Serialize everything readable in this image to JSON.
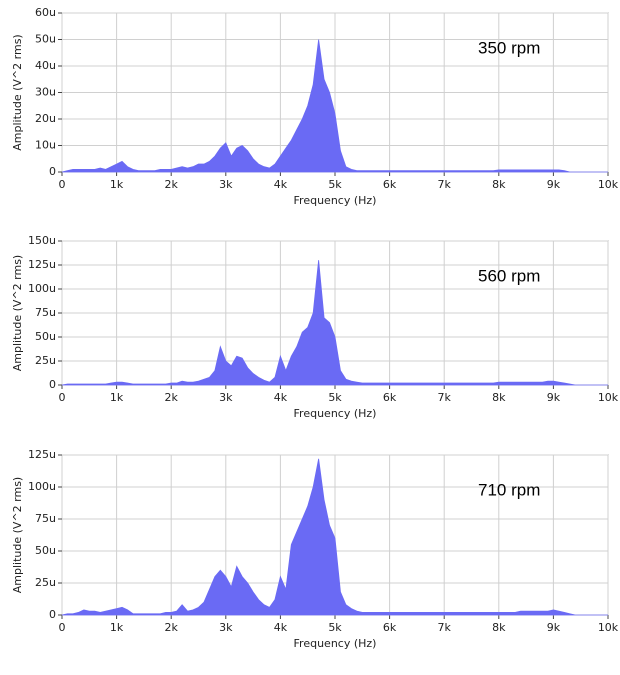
{
  "chart_data": [
    {
      "type": "area",
      "annotation": "350 rpm",
      "xlabel": "Frequency (Hz)",
      "ylabel": "Amplitude (V^2 rms)",
      "color": "#6a6af4",
      "grid": true,
      "xlim": [
        0,
        10000
      ],
      "ylim": [
        0,
        6e-05
      ],
      "xticks": [
        0,
        {
          "value": 1000,
          "label": "1k"
        },
        {
          "value": 2000,
          "label": "2k"
        },
        {
          "value": 3000,
          "label": "3k"
        },
        {
          "value": 4000,
          "label": "4k"
        },
        {
          "value": 5000,
          "label": "5k"
        },
        {
          "value": 6000,
          "label": "6k"
        },
        {
          "value": 7000,
          "label": "7k"
        },
        {
          "value": 8000,
          "label": "8k"
        },
        {
          "value": 9000,
          "label": "9k"
        },
        {
          "value": 10000,
          "label": "10k"
        }
      ],
      "yticks": [
        0,
        {
          "value": 1e-05,
          "label": "10u"
        },
        {
          "value": 2e-05,
          "label": "20u"
        },
        {
          "value": 3e-05,
          "label": "30u"
        },
        {
          "value": 4e-05,
          "label": "40u"
        },
        {
          "value": 5e-05,
          "label": "50u"
        },
        {
          "value": 6e-05,
          "label": "60u"
        }
      ],
      "x": [
        0,
        100,
        200,
        300,
        400,
        500,
        600,
        700,
        800,
        900,
        1000,
        1100,
        1200,
        1300,
        1400,
        1500,
        1600,
        1700,
        1800,
        1900,
        2000,
        2100,
        2200,
        2300,
        2400,
        2500,
        2600,
        2700,
        2800,
        2900,
        3000,
        3100,
        3200,
        3300,
        3400,
        3500,
        3600,
        3700,
        3800,
        3900,
        4000,
        4100,
        4200,
        4300,
        4400,
        4500,
        4600,
        4700,
        4800,
        4900,
        5000,
        5100,
        5200,
        5300,
        5400,
        5500,
        5600,
        5700,
        5800,
        5900,
        6000,
        6100,
        6200,
        6300,
        6400,
        6500,
        6600,
        6700,
        6800,
        6900,
        7000,
        7100,
        7200,
        7300,
        7400,
        7500,
        7600,
        7700,
        7800,
        7900,
        8000,
        8100,
        8200,
        8300,
        8400,
        8500,
        8600,
        8700,
        8800,
        8900,
        9000,
        9100,
        9200,
        9300,
        9400,
        9500,
        9600,
        9700,
        9800,
        9900,
        10000
      ],
      "values": [
        0,
        5e-07,
        1e-06,
        1e-06,
        1e-06,
        1e-06,
        1e-06,
        1.5e-06,
        1e-06,
        2e-06,
        3e-06,
        4e-06,
        2e-06,
        1e-06,
        5e-07,
        5e-07,
        5e-07,
        5e-07,
        1e-06,
        1e-06,
        1e-06,
        1.5e-06,
        2e-06,
        1.5e-06,
        2e-06,
        3e-06,
        3e-06,
        4e-06,
        6e-06,
        9e-06,
        1.1e-05,
        6e-06,
        9e-06,
        1e-05,
        8e-06,
        5e-06,
        3e-06,
        2e-06,
        1.5e-06,
        3e-06,
        6e-06,
        9e-06,
        1.2e-05,
        1.6e-05,
        2e-05,
        2.5e-05,
        3.3e-05,
        5e-05,
        3.5e-05,
        3e-05,
        2.2e-05,
        8e-06,
        2e-06,
        1e-06,
        5e-07,
        5e-07,
        5e-07,
        5e-07,
        5e-07,
        5e-07,
        5e-07,
        5e-07,
        5e-07,
        5e-07,
        5e-07,
        5e-07,
        5e-07,
        5e-07,
        5e-07,
        5e-07,
        5e-07,
        5e-07,
        5e-07,
        5e-07,
        5e-07,
        5e-07,
        5e-07,
        5e-07,
        5e-07,
        5e-07,
        8e-07,
        8e-07,
        8e-07,
        8e-07,
        8e-07,
        8e-07,
        8e-07,
        8e-07,
        8e-07,
        8e-07,
        8e-07,
        8e-07,
        5e-07,
        0,
        0,
        0,
        0,
        0,
        0,
        0,
        0
      ]
    },
    {
      "type": "area",
      "annotation": "560 rpm",
      "xlabel": "Frequency (Hz)",
      "ylabel": "Amplitude (V^2 rms)",
      "color": "#6a6af4",
      "grid": true,
      "xlim": [
        0,
        10000
      ],
      "ylim": [
        0,
        0.00015
      ],
      "xticks": [
        0,
        {
          "value": 1000,
          "label": "1k"
        },
        {
          "value": 2000,
          "label": "2k"
        },
        {
          "value": 3000,
          "label": "3k"
        },
        {
          "value": 4000,
          "label": "4k"
        },
        {
          "value": 5000,
          "label": "5k"
        },
        {
          "value": 6000,
          "label": "6k"
        },
        {
          "value": 7000,
          "label": "7k"
        },
        {
          "value": 8000,
          "label": "8k"
        },
        {
          "value": 9000,
          "label": "9k"
        },
        {
          "value": 10000,
          "label": "10k"
        }
      ],
      "yticks": [
        0,
        {
          "value": 2.5e-05,
          "label": "25u"
        },
        {
          "value": 5e-05,
          "label": "50u"
        },
        {
          "value": 7.5e-05,
          "label": "75u"
        },
        {
          "value": 0.0001,
          "label": "100u"
        },
        {
          "value": 0.000125,
          "label": "125u"
        },
        {
          "value": 0.00015,
          "label": "150u"
        }
      ],
      "x": [
        0,
        100,
        200,
        300,
        400,
        500,
        600,
        700,
        800,
        900,
        1000,
        1100,
        1200,
        1300,
        1400,
        1500,
        1600,
        1700,
        1800,
        1900,
        2000,
        2100,
        2200,
        2300,
        2400,
        2500,
        2600,
        2700,
        2800,
        2900,
        3000,
        3100,
        3200,
        3300,
        3400,
        3500,
        3600,
        3700,
        3800,
        3900,
        4000,
        4100,
        4200,
        4300,
        4400,
        4500,
        4600,
        4700,
        4800,
        4900,
        5000,
        5100,
        5200,
        5300,
        5400,
        5500,
        5600,
        5700,
        5800,
        5900,
        6000,
        6100,
        6200,
        6300,
        6400,
        6500,
        6600,
        6700,
        6800,
        6900,
        7000,
        7100,
        7200,
        7300,
        7400,
        7500,
        7600,
        7700,
        7800,
        7900,
        8000,
        8100,
        8200,
        8300,
        8400,
        8500,
        8600,
        8700,
        8800,
        8900,
        9000,
        9100,
        9200,
        9300,
        9400,
        9500,
        9600,
        9700,
        9800,
        9900,
        10000
      ],
      "values": [
        0,
        1e-06,
        1e-06,
        1e-06,
        1e-06,
        1e-06,
        1e-06,
        1e-06,
        1e-06,
        2e-06,
        3e-06,
        3e-06,
        2e-06,
        1e-06,
        1e-06,
        1e-06,
        1e-06,
        1e-06,
        1e-06,
        1e-06,
        2e-06,
        2e-06,
        4e-06,
        3e-06,
        3e-06,
        4e-06,
        6e-06,
        8e-06,
        1.5e-05,
        4e-05,
        2.5e-05,
        2e-05,
        3e-05,
        2.8e-05,
        1.8e-05,
        1.2e-05,
        8e-06,
        5e-06,
        3e-06,
        8e-06,
        3e-05,
        1.5e-05,
        3e-05,
        4e-05,
        5.5e-05,
        6e-05,
        7.5e-05,
        0.00013,
        7e-05,
        6.5e-05,
        5e-05,
        1.5e-05,
        6e-06,
        4e-06,
        3e-06,
        2e-06,
        2e-06,
        2e-06,
        2e-06,
        2e-06,
        2e-06,
        2e-06,
        2e-06,
        2e-06,
        2e-06,
        2e-06,
        2e-06,
        2e-06,
        2e-06,
        2e-06,
        2e-06,
        2e-06,
        2e-06,
        2e-06,
        2e-06,
        2e-06,
        2e-06,
        2e-06,
        2e-06,
        2e-06,
        3e-06,
        3e-06,
        3e-06,
        3e-06,
        3e-06,
        3e-06,
        3e-06,
        3e-06,
        3e-06,
        4e-06,
        4e-06,
        3e-06,
        2e-06,
        1e-06,
        0,
        0,
        0,
        0,
        0,
        0,
        0
      ]
    },
    {
      "type": "area",
      "annotation": "710 rpm",
      "xlabel": "Frequency (Hz)",
      "ylabel": "Amplitude (V^2 rms)",
      "color": "#6a6af4",
      "grid": true,
      "xlim": [
        0,
        10000
      ],
      "ylim": [
        0,
        0.000125
      ],
      "xticks": [
        0,
        {
          "value": 1000,
          "label": "1k"
        },
        {
          "value": 2000,
          "label": "2k"
        },
        {
          "value": 3000,
          "label": "3k"
        },
        {
          "value": 4000,
          "label": "4k"
        },
        {
          "value": 5000,
          "label": "5k"
        },
        {
          "value": 6000,
          "label": "6k"
        },
        {
          "value": 7000,
          "label": "7k"
        },
        {
          "value": 8000,
          "label": "8k"
        },
        {
          "value": 9000,
          "label": "9k"
        },
        {
          "value": 10000,
          "label": "10k"
        }
      ],
      "yticks": [
        0,
        {
          "value": 2.5e-05,
          "label": "25u"
        },
        {
          "value": 5e-05,
          "label": "50u"
        },
        {
          "value": 7.5e-05,
          "label": "75u"
        },
        {
          "value": 0.0001,
          "label": "100u"
        },
        {
          "value": 0.000125,
          "label": "125u"
        }
      ],
      "x": [
        0,
        100,
        200,
        300,
        400,
        500,
        600,
        700,
        800,
        900,
        1000,
        1100,
        1200,
        1300,
        1400,
        1500,
        1600,
        1700,
        1800,
        1900,
        2000,
        2100,
        2200,
        2300,
        2400,
        2500,
        2600,
        2700,
        2800,
        2900,
        3000,
        3100,
        3200,
        3300,
        3400,
        3500,
        3600,
        3700,
        3800,
        3900,
        4000,
        4100,
        4200,
        4300,
        4400,
        4500,
        4600,
        4700,
        4800,
        4900,
        5000,
        5100,
        5200,
        5300,
        5400,
        5500,
        5600,
        5700,
        5800,
        5900,
        6000,
        6100,
        6200,
        6300,
        6400,
        6500,
        6600,
        6700,
        6800,
        6900,
        7000,
        7100,
        7200,
        7300,
        7400,
        7500,
        7600,
        7700,
        7800,
        7900,
        8000,
        8100,
        8200,
        8300,
        8400,
        8500,
        8600,
        8700,
        8800,
        8900,
        9000,
        9100,
        9200,
        9300,
        9400,
        9500,
        9600,
        9700,
        9800,
        9900,
        10000
      ],
      "values": [
        0,
        1e-06,
        1e-06,
        2e-06,
        4e-06,
        3e-06,
        3e-06,
        2e-06,
        3e-06,
        4e-06,
        5e-06,
        6e-06,
        4e-06,
        1e-06,
        1e-06,
        1e-06,
        1e-06,
        1e-06,
        1e-06,
        2e-06,
        2e-06,
        3e-06,
        8e-06,
        3e-06,
        4e-06,
        6e-06,
        1e-05,
        2e-05,
        3e-05,
        3.5e-05,
        3e-05,
        2.2e-05,
        3.8e-05,
        3e-05,
        2.5e-05,
        1.8e-05,
        1.2e-05,
        8e-06,
        6e-06,
        1.2e-05,
        3e-05,
        2e-05,
        5.5e-05,
        6.5e-05,
        7.5e-05,
        8.5e-05,
        0.0001,
        0.000122,
        9e-05,
        7e-05,
        6e-05,
        1.8e-05,
        8e-06,
        5e-06,
        3e-06,
        2e-06,
        2e-06,
        2e-06,
        2e-06,
        2e-06,
        2e-06,
        2e-06,
        2e-06,
        2e-06,
        2e-06,
        2e-06,
        2e-06,
        2e-06,
        2e-06,
        2e-06,
        2e-06,
        2e-06,
        2e-06,
        2e-06,
        2e-06,
        2e-06,
        2e-06,
        2e-06,
        2e-06,
        2e-06,
        2e-06,
        2e-06,
        2e-06,
        2e-06,
        3e-06,
        3e-06,
        3e-06,
        3e-06,
        3e-06,
        3e-06,
        4e-06,
        3e-06,
        2e-06,
        1e-06,
        0,
        0,
        0,
        0,
        0,
        0,
        0
      ]
    }
  ]
}
